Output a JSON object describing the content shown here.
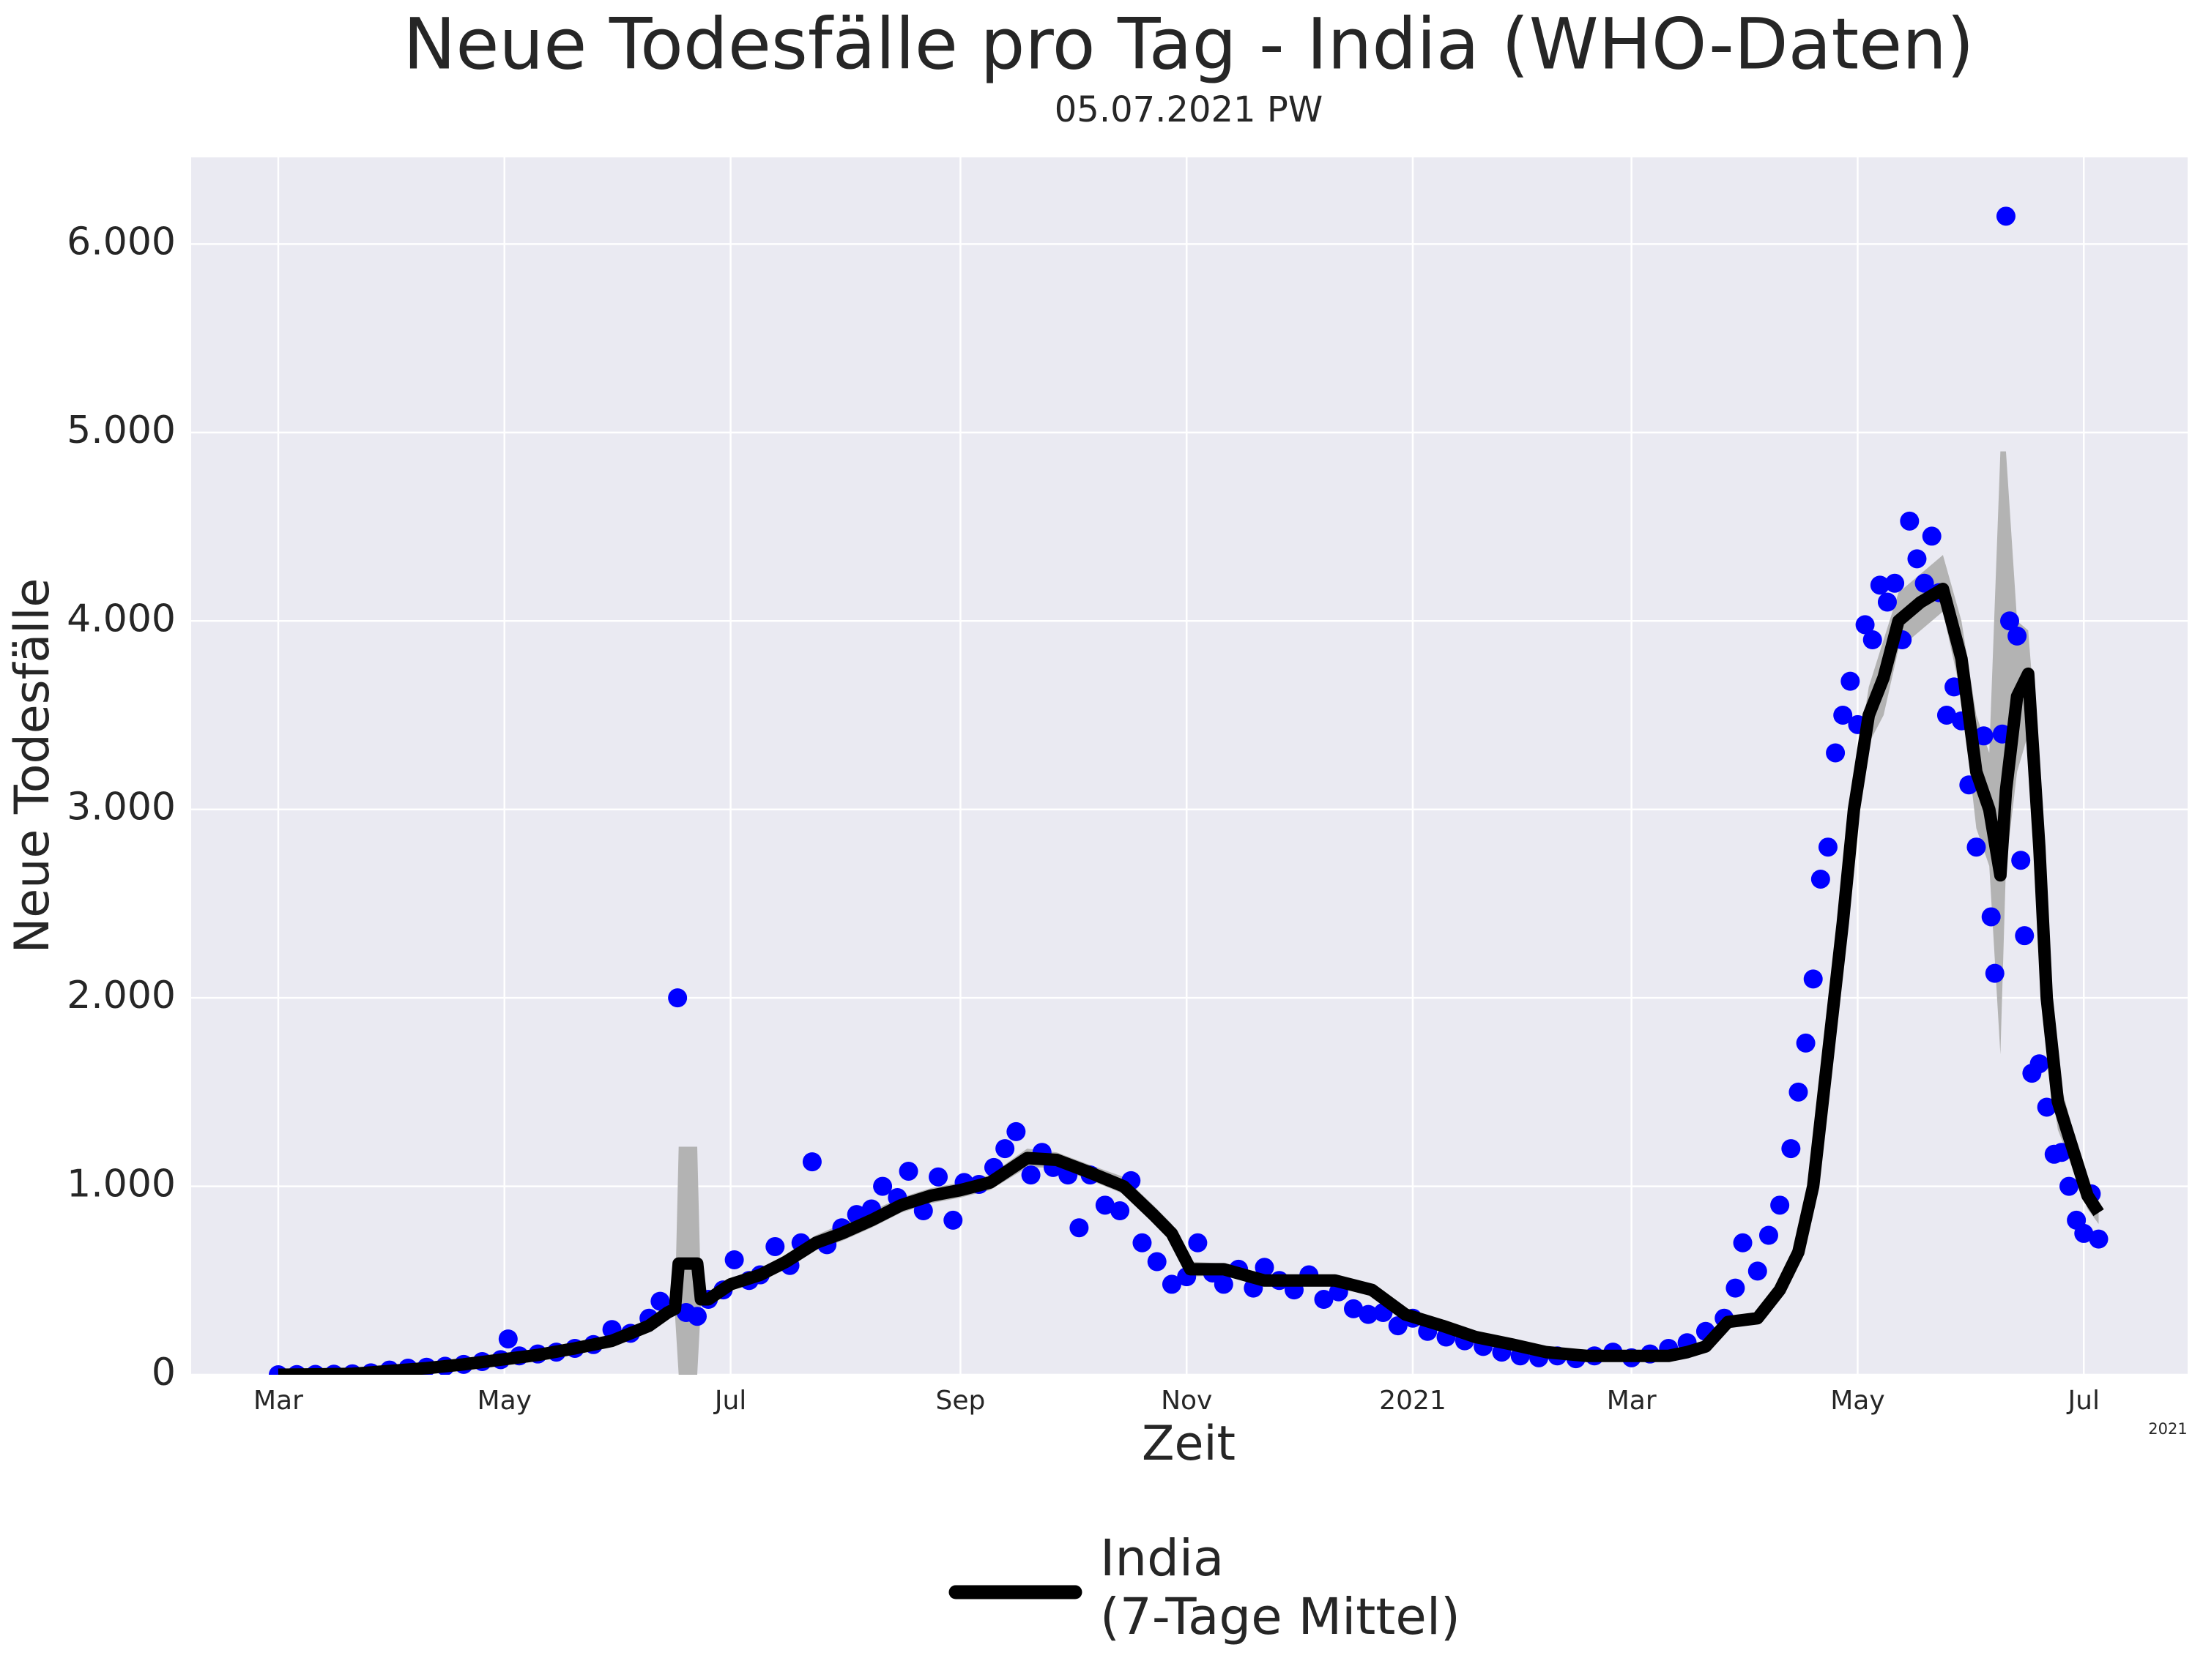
{
  "chart_data": {
    "type": "line",
    "title": "Neue Todesfälle pro Tag - India (WHO-Daten)",
    "subtitle": "05.07.2021 PW",
    "xlabel": "Zeit",
    "ylabel": "Neue Todesfälle",
    "x_offset_label": "2021",
    "xlim": [
      -23.5,
      515
    ],
    "ylim": [
      0,
      6460
    ],
    "xticks": [
      {
        "value": 0,
        "label": "Mar"
      },
      {
        "value": 61,
        "label": "May"
      },
      {
        "value": 122,
        "label": "Jul"
      },
      {
        "value": 184,
        "label": "Sep"
      },
      {
        "value": 245,
        "label": "Nov"
      },
      {
        "value": 306,
        "label": "2021"
      },
      {
        "value": 365,
        "label": "Mar"
      },
      {
        "value": 426,
        "label": "May"
      },
      {
        "value": 487,
        "label": "Jul"
      }
    ],
    "yticks": [
      0,
      {
        "value": 1000,
        "label": "1.000"
      },
      {
        "value": 2000,
        "label": "2.000"
      },
      {
        "value": 3000,
        "label": "3.000"
      },
      {
        "value": 4000,
        "label": "4.000"
      },
      {
        "value": 5000,
        "label": "5.000"
      },
      {
        "value": 6000,
        "label": "6.000"
      }
    ],
    "grid": true,
    "background": "#eaeaf2",
    "legend": "bottom",
    "scatter": {
      "color": "#0000ff",
      "x": [
        0,
        5,
        10,
        15,
        20,
        25,
        30,
        35,
        40,
        45,
        50,
        55,
        60,
        62,
        65,
        70,
        75,
        80,
        85,
        90,
        95,
        100,
        103,
        107.7,
        110,
        113,
        116,
        120,
        123,
        127,
        130,
        134,
        138,
        141,
        144,
        148,
        152,
        156,
        160,
        163,
        167,
        170,
        174,
        178,
        182,
        185,
        189,
        193,
        196,
        199,
        203,
        206,
        209,
        213,
        216,
        219,
        223,
        227,
        230,
        233,
        237,
        241,
        245,
        248,
        252,
        255,
        259,
        263,
        266,
        270,
        274,
        278,
        282,
        286,
        290,
        294,
        298,
        302,
        306,
        310,
        315,
        320,
        325,
        330,
        335,
        340,
        345,
        350,
        355,
        360,
        365,
        370,
        375,
        380,
        385,
        390,
        393,
        395,
        399,
        402,
        405,
        408,
        410,
        412,
        414,
        416,
        418,
        420,
        422,
        424,
        426,
        428,
        430,
        432,
        434,
        436,
        438,
        440,
        442,
        444,
        446,
        448,
        450,
        452,
        454,
        456,
        458,
        460,
        462,
        463,
        465,
        466,
        467,
        469,
        470,
        471,
        473,
        475,
        477,
        479,
        481,
        483,
        485,
        487,
        489,
        491
      ],
      "values": [
        0,
        1,
        2,
        3,
        5,
        10,
        25,
        35,
        40,
        45,
        55,
        70,
        80,
        190,
        100,
        110,
        120,
        140,
        160,
        240,
        220,
        300,
        390,
        2000,
        330,
        310,
        400,
        450,
        610,
        500,
        530,
        680,
        580,
        700,
        1130,
        690,
        780,
        850,
        880,
        1000,
        940,
        1080,
        870,
        1050,
        820,
        1020,
        1010,
        1100,
        1200,
        1290,
        1060,
        1180,
        1100,
        1060,
        780,
        1060,
        900,
        870,
        1030,
        700,
        600,
        480,
        520,
        700,
        540,
        480,
        560,
        460,
        570,
        500,
        450,
        530,
        400,
        440,
        350,
        320,
        330,
        260,
        300,
        230,
        200,
        180,
        150,
        120,
        100,
        90,
        100,
        85,
        100,
        120,
        90,
        110,
        140,
        170,
        230,
        300,
        460,
        700,
        550,
        740,
        900,
        1200,
        1500,
        1760,
        2100,
        2630,
        2800,
        3300,
        3500,
        3680,
        3450,
        3980,
        3900,
        4190,
        4100,
        4200,
        3900,
        4530,
        4330,
        4200,
        4450,
        4150,
        3500,
        3650,
        3470,
        3130,
        2800,
        3390,
        2430,
        2130,
        3400,
        6148,
        4000,
        3920,
        2730,
        2330,
        1600,
        1650,
        1420,
        1170,
        1180,
        1000,
        820,
        750,
        960,
        720
      ]
    },
    "series": [
      {
        "name": "India\n(7-Tage Mittel)",
        "color": "#000000",
        "band_color": "#b3b3b3",
        "x": [
          0,
          10,
          20,
          30,
          40,
          50,
          60,
          70,
          80,
          90,
          100,
          105,
          107,
          108,
          113,
          114,
          116,
          122,
          130,
          137,
          145,
          152,
          160,
          168,
          176,
          184,
          192,
          202,
          210,
          218,
          228,
          236,
          241,
          246,
          255,
          266,
          275,
          285,
          295,
          304,
          314,
          323,
          333,
          342,
          353,
          365,
          375,
          380,
          385,
          391,
          399,
          405,
          410,
          414,
          418,
          422,
          425,
          429,
          433,
          437,
          443,
          449,
          454,
          458,
          461.5,
          464.5,
          466,
          469,
          472,
          475,
          477,
          480,
          484,
          488,
          491
        ],
        "values": [
          0,
          2,
          5,
          20,
          35,
          55,
          80,
          105,
          140,
          180,
          260,
          330,
          350,
          590,
          590,
          400,
          400,
          480,
          530,
          600,
          700,
          750,
          820,
          900,
          950,
          980,
          1020,
          1150,
          1140,
          1080,
          1000,
          850,
          750,
          560,
          560,
          500,
          500,
          500,
          450,
          320,
          260,
          200,
          160,
          120,
          100,
          100,
          100,
          120,
          150,
          280,
          300,
          450,
          650,
          1000,
          1700,
          2400,
          3000,
          3500,
          3700,
          4000,
          4100,
          4170,
          3800,
          3200,
          3000,
          2650,
          3100,
          3600,
          3720,
          2800,
          2000,
          1450,
          1200,
          950,
          860
        ],
        "band_lower": [
          0,
          1,
          4,
          17,
          30,
          48,
          70,
          95,
          125,
          165,
          240,
          300,
          320,
          0,
          0,
          370,
          370,
          450,
          500,
          560,
          660,
          710,
          780,
          860,
          910,
          940,
          980,
          1100,
          1100,
          1040,
          960,
          810,
          700,
          520,
          530,
          470,
          470,
          470,
          420,
          300,
          240,
          185,
          145,
          110,
          90,
          90,
          90,
          110,
          135,
          250,
          270,
          410,
          600,
          900,
          1550,
          2250,
          2850,
          3350,
          3500,
          3850,
          3950,
          4050,
          3600,
          2900,
          2700,
          1700,
          2700,
          3200,
          3400,
          2400,
          1700,
          1300,
          1100,
          880,
          800
        ],
        "band_upper": [
          0,
          3,
          6,
          23,
          40,
          62,
          90,
          115,
          155,
          195,
          280,
          360,
          380,
          1210,
          1210,
          430,
          430,
          510,
          560,
          640,
          740,
          800,
          870,
          940,
          990,
          1020,
          1060,
          1200,
          1180,
          1120,
          1050,
          900,
          800,
          600,
          590,
          530,
          530,
          530,
          480,
          340,
          280,
          215,
          175,
          130,
          110,
          110,
          110,
          130,
          165,
          310,
          330,
          490,
          700,
          1100,
          1850,
          2550,
          3150,
          3650,
          3900,
          4150,
          4250,
          4350,
          4000,
          3500,
          3300,
          4900,
          4900,
          4000,
          3950,
          3200,
          2300,
          1600,
          1300,
          1020,
          920
        ]
      }
    ]
  }
}
